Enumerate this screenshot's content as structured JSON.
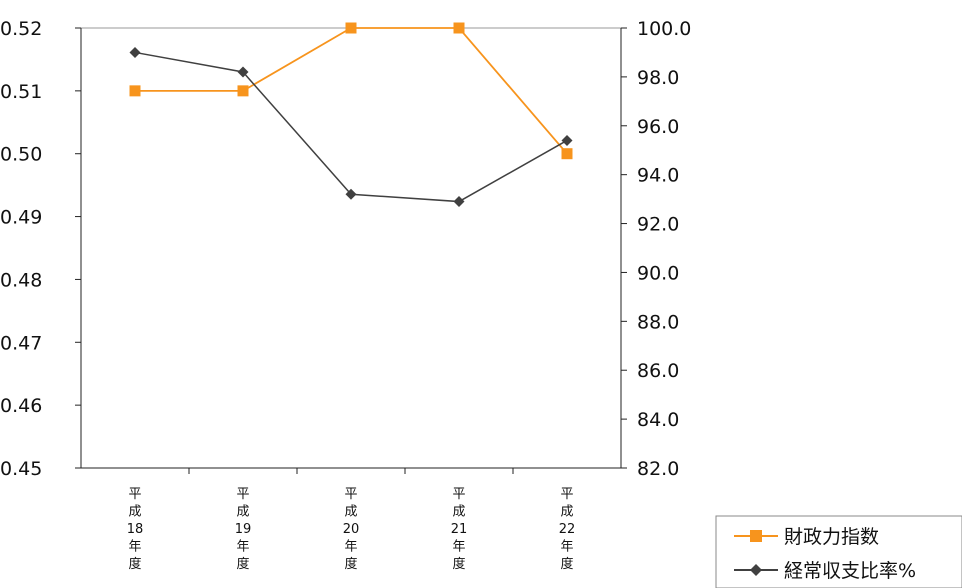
{
  "chart_data": {
    "type": "line",
    "categories": [
      [
        "平",
        "成",
        "18",
        "年",
        "度"
      ],
      [
        "平",
        "成",
        "19",
        "年",
        "度"
      ],
      [
        "平",
        "成",
        "20",
        "年",
        "度"
      ],
      [
        "平",
        "成",
        "21",
        "年",
        "度"
      ],
      [
        "平",
        "成",
        "22",
        "年",
        "度"
      ]
    ],
    "series": [
      {
        "name": "財政力指数",
        "axis": "left",
        "color": "#f7941d",
        "marker": "square",
        "values": [
          0.51,
          0.51,
          0.52,
          0.52,
          0.5
        ]
      },
      {
        "name": "経常収支比率%",
        "axis": "right",
        "color": "#404040",
        "marker": "diamond",
        "values": [
          99.0,
          98.2,
          93.2,
          92.9,
          95.4
        ]
      }
    ],
    "y_left": {
      "min": 0.45,
      "max": 0.52,
      "step": 0.01,
      "tick_labels": [
        "0.45",
        "0.46",
        "0.47",
        "0.48",
        "0.49",
        "0.50",
        "0.51",
        "0.52"
      ]
    },
    "y_right": {
      "min": 82.0,
      "max": 100.0,
      "step": 2.0,
      "tick_labels": [
        "82.0",
        "84.0",
        "86.0",
        "88.0",
        "90.0",
        "92.0",
        "94.0",
        "96.0",
        "98.0",
        "100.0"
      ]
    },
    "grid": true,
    "legend_position": "bottom-right"
  }
}
